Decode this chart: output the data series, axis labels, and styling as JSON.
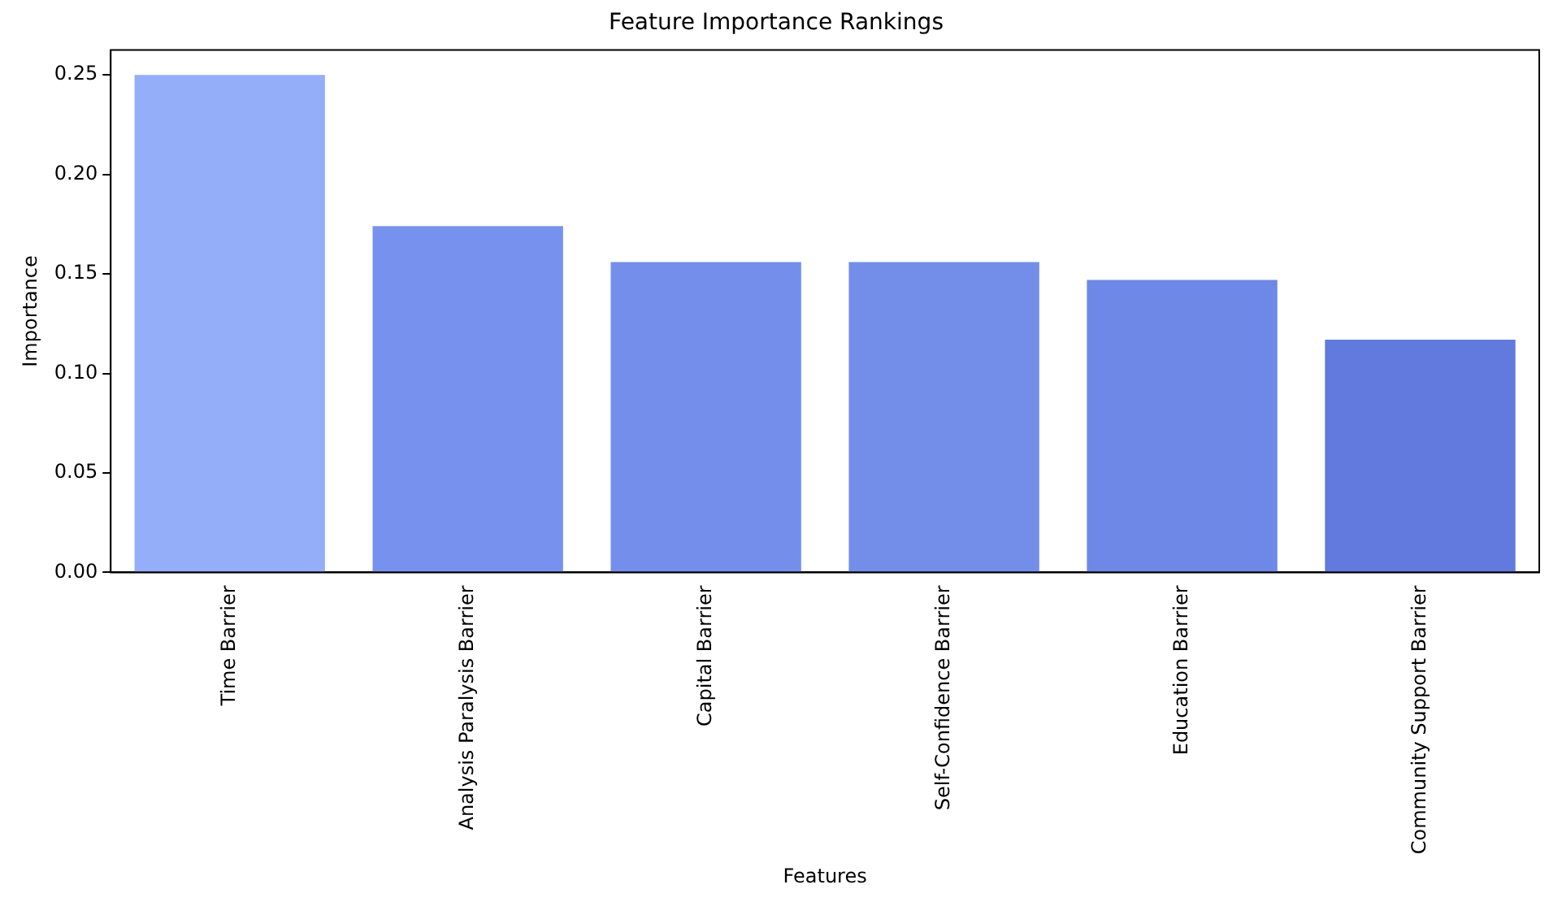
{
  "chart_data": {
    "type": "bar",
    "title": "Feature Importance Rankings",
    "xlabel": "Features",
    "ylabel": "Importance",
    "categories": [
      "Time Barrier",
      "Analysis Paralysis Barrier",
      "Capital Barrier",
      "Self-Confidence Barrier",
      "Education Barrier",
      "Community Support Barrier"
    ],
    "values": [
      0.25,
      0.174,
      0.156,
      0.156,
      0.147,
      0.117
    ],
    "colors": [
      "#95aefa",
      "#7792ee",
      "#748feb",
      "#738ee9",
      "#6d88e6",
      "#627ade"
    ],
    "ylim": [
      0,
      0.2625
    ],
    "yticks": [
      {
        "value": 0,
        "label": "0.00"
      },
      {
        "value": 0.05,
        "label": "0.05"
      },
      {
        "value": 0.1,
        "label": "0.10"
      },
      {
        "value": 0.15,
        "label": "0.15"
      },
      {
        "value": 0.2,
        "label": "0.20"
      },
      {
        "value": 0.25,
        "label": "0.25"
      }
    ],
    "grid": false,
    "legend": false
  }
}
